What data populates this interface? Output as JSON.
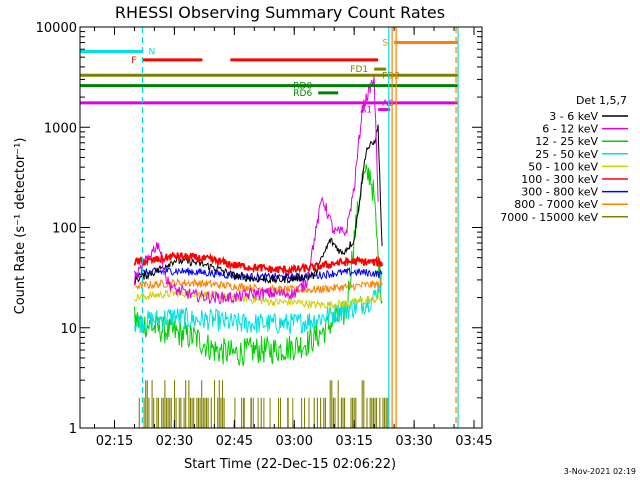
{
  "chart_data": {
    "type": "line",
    "title": "RHESSI Observing Summary Count Rates",
    "xlabel": "Start Time (22-Dec-15 02:06:22)",
    "ylabel": "Count Rate (s⁻¹ detector⁻¹)",
    "footer": "3-Nov-2021 02:19",
    "y_scale": "log",
    "ylim": [
      1,
      10000
    ],
    "xlim": [
      "02:06:22",
      "03:47:00"
    ],
    "x_ticks": [
      "02:15",
      "02:30",
      "02:45",
      "03:00",
      "03:15",
      "03:30",
      "03:45"
    ],
    "y_ticks": [
      "1",
      "10",
      "100",
      "1000",
      "10000"
    ],
    "grid": false,
    "legend": {
      "title": "Det 1,5,7",
      "placement": "right"
    },
    "series": [
      {
        "name": "3 - 6 keV",
        "color": "#000000",
        "x": [
          "02:20",
          "02:25",
          "02:30",
          "02:35",
          "02:40",
          "02:45",
          "02:50",
          "02:55",
          "03:00",
          "03:05",
          "03:09",
          "03:12",
          "03:15",
          "03:18",
          "03:20",
          "03:21",
          "03:22"
        ],
        "y": [
          30,
          36,
          47,
          45,
          40,
          33,
          31,
          30,
          31,
          33,
          75,
          55,
          75,
          600,
          700,
          1000,
          60
        ]
      },
      {
        "name": "6 - 12 keV",
        "color": "#e000e0",
        "x": [
          "02:20",
          "02:24",
          "02:26",
          "02:28",
          "02:30",
          "02:35",
          "02:40",
          "02:45",
          "02:50",
          "02:55",
          "03:00",
          "03:03",
          "03:07",
          "03:10",
          "03:13",
          "03:15",
          "03:17",
          "03:19",
          "03:20",
          "03:21"
        ],
        "y": [
          30,
          55,
          70,
          30,
          24,
          21,
          20,
          20,
          22,
          22,
          22,
          28,
          200,
          90,
          90,
          250,
          1500,
          2500,
          3000,
          200
        ]
      },
      {
        "name": "12 - 25 keV",
        "color": "#00d000",
        "x": [
          "02:20",
          "02:25",
          "02:30",
          "02:35",
          "02:40",
          "02:45",
          "02:50",
          "02:55",
          "03:00",
          "03:03",
          "03:07",
          "03:10",
          "03:13",
          "03:15",
          "03:17",
          "03:19",
          "03:20",
          "03:21",
          "03:22"
        ],
        "y": [
          12,
          10,
          9,
          8,
          6,
          5.5,
          6,
          6,
          6.5,
          7,
          9,
          12,
          14,
          80,
          300,
          350,
          200,
          50,
          20
        ]
      },
      {
        "name": "25 - 50 keV",
        "color": "#00e0e0",
        "x": [
          "02:20",
          "02:25",
          "02:30",
          "02:35",
          "02:40",
          "02:45",
          "02:50",
          "02:55",
          "03:00",
          "03:05",
          "03:10",
          "03:15",
          "03:18",
          "03:20",
          "03:21",
          "03:22"
        ],
        "y": [
          11,
          12,
          13,
          12,
          12,
          11,
          11,
          11,
          11,
          12,
          14,
          16,
          18,
          20,
          25,
          30
        ]
      },
      {
        "name": "50 - 100 keV",
        "color": "#d0d000",
        "x": [
          "02:20",
          "02:25",
          "02:30",
          "02:35",
          "02:40",
          "02:45",
          "02:50",
          "02:55",
          "03:00",
          "03:05",
          "03:10",
          "03:15",
          "03:20",
          "03:22"
        ],
        "y": [
          20,
          21,
          22,
          22,
          21,
          20,
          19,
          18,
          18,
          17,
          17,
          18,
          19,
          20
        ]
      },
      {
        "name": "100 - 300 keV",
        "color": "#ff0000",
        "x": [
          "02:20",
          "02:25",
          "02:30",
          "02:35",
          "02:40",
          "02:45",
          "02:50",
          "02:55",
          "03:00",
          "03:05",
          "03:10",
          "03:15",
          "03:20",
          "03:22"
        ],
        "y": [
          45,
          47,
          52,
          50,
          47,
          42,
          40,
          38,
          38,
          40,
          44,
          46,
          45,
          44
        ]
      },
      {
        "name": "300 - 800 keV",
        "color": "#0000ff",
        "x": [
          "02:20",
          "02:25",
          "02:30",
          "02:35",
          "02:40",
          "02:45",
          "02:50",
          "02:55",
          "03:00",
          "03:05",
          "03:10",
          "03:15",
          "03:20",
          "03:22"
        ],
        "y": [
          35,
          36,
          37,
          36,
          35,
          33,
          32,
          32,
          32,
          33,
          35,
          36,
          35,
          34
        ]
      },
      {
        "name": "800 - 7000 keV",
        "color": "#ff8000",
        "x": [
          "02:20",
          "02:25",
          "02:30",
          "02:35",
          "02:40",
          "02:45",
          "02:50",
          "02:55",
          "03:00",
          "03:05",
          "03:10",
          "03:15",
          "03:20",
          "03:22"
        ],
        "y": [
          26,
          27,
          28,
          28,
          27,
          26,
          25,
          24,
          24,
          24,
          25,
          26,
          27,
          27
        ]
      },
      {
        "name": "7000 - 15000 keV",
        "color": "#808000",
        "x": [
          "02:20",
          "02:40",
          "03:05",
          "03:23"
        ],
        "y": [
          1.8,
          1.8,
          1.8,
          1.8
        ]
      }
    ],
    "flags": [
      {
        "label": "N",
        "color": "#00e0e0",
        "y": 5700,
        "segments": [
          [
            "02:06:22",
            "02:22:00"
          ]
        ],
        "label_at": "02:23:00",
        "label_side": "right"
      },
      {
        "label": "F",
        "color": "#ff0000",
        "y": 4700,
        "segments": [
          [
            "02:22:00",
            "02:37:00"
          ],
          [
            "02:44:00",
            "03:21:00"
          ]
        ],
        "label_at": "02:21:00",
        "label_side": "left"
      },
      {
        "label": "S",
        "color": "#ff8000",
        "y": 7000,
        "segments": [
          [
            "03:25:00",
            "03:41:00"
          ]
        ],
        "label_at": "03:24:00",
        "label_side": "left"
      },
      {
        "label": "FD1",
        "color": "#808000",
        "y": 3800,
        "segments": [
          [
            "03:20:00",
            "03:23:00"
          ]
        ],
        "label_at": "03:19:00",
        "label_side": "left"
      },
      {
        "label": "FD2",
        "color": "#808000",
        "y": 3300,
        "segments": [
          [
            "02:06:22",
            "03:41:00"
          ]
        ],
        "label_at": "03:21:30",
        "label_side": "right"
      },
      {
        "label": "RD0",
        "color": "#008000",
        "y": 2600,
        "segments": [
          [
            "02:06:22",
            "03:41:00"
          ]
        ],
        "label_at": "03:05:00",
        "label_side": "left"
      },
      {
        "label": "RD6",
        "color": "#008000",
        "y": 2200,
        "segments": [
          [
            "03:06:00",
            "03:11:00"
          ]
        ],
        "label_at": "03:05:00",
        "label_side": "left"
      },
      {
        "label": "A1",
        "color": "#e000e0",
        "y": 1500,
        "segments": [
          [
            "03:21:00",
            "03:24:00"
          ]
        ],
        "label_at": "03:20:00",
        "label_side": "left"
      },
      {
        "label": "A0",
        "color": "#e000e0",
        "y": 1750,
        "segments": [
          [
            "02:06:22",
            "03:41:00"
          ]
        ],
        "label_at": "03:21:30",
        "label_side": "right"
      }
    ],
    "vlines": [
      {
        "x": "02:22:00",
        "color": "#00e0e0",
        "style": "dashed"
      },
      {
        "x": "03:23:40",
        "color": "#00e0e0",
        "style": "solid"
      },
      {
        "x": "03:24:30",
        "color": "#ff8000",
        "style": "solid"
      },
      {
        "x": "03:25:30",
        "color": "#ff8000",
        "style": "solid"
      },
      {
        "x": "03:40:30",
        "color": "#ff8000",
        "style": "dashed"
      },
      {
        "x": "03:41:00",
        "color": "#00e0e0",
        "style": "solid"
      }
    ]
  }
}
